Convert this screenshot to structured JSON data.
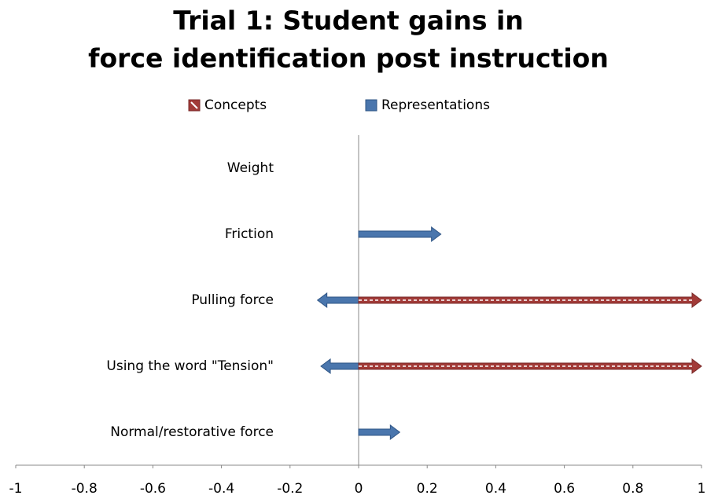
{
  "chart_data": {
    "type": "arrow_bar",
    "title": [
      "Trial 1: Student gains in",
      "force identification post instruction"
    ],
    "categories": [
      "Weight",
      "Friction",
      "Pulling force",
      "Using the word \"Tension\"",
      "Normal/restorative force"
    ],
    "series": [
      {
        "name": "Concepts",
        "color": "#a23b38",
        "values": [
          0,
          0,
          1,
          1,
          0
        ]
      },
      {
        "name": "Representations",
        "color": "#4a76ad",
        "values": [
          0,
          0.24,
          -0.12,
          -0.11,
          0.12
        ]
      }
    ],
    "xlim": [
      -1,
      1
    ],
    "xticks": [
      -1,
      -0.8,
      -0.6,
      -0.4,
      -0.2,
      0,
      0.2,
      0.4,
      0.6,
      0.8,
      1
    ],
    "legend": "top"
  }
}
